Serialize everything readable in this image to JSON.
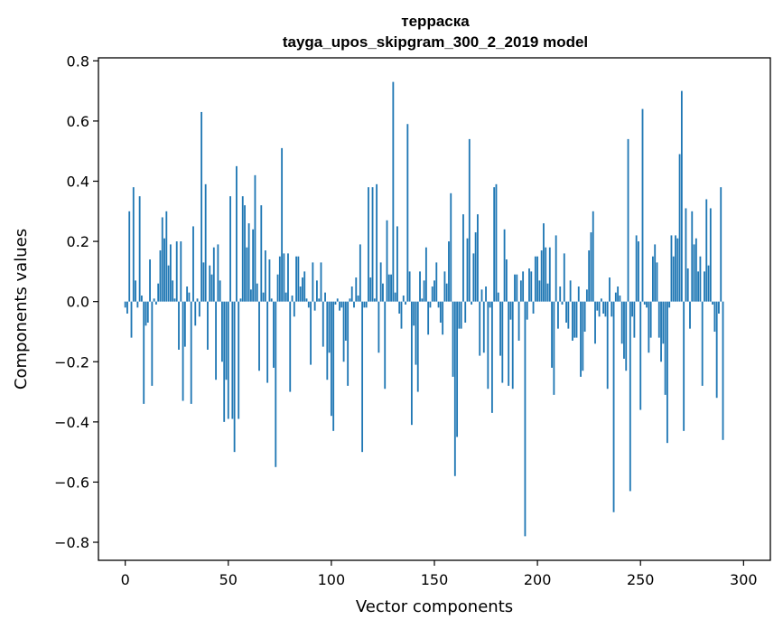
{
  "chart_data": {
    "type": "bar",
    "title_line1": "терраска",
    "title_line2": "tayga_upos_skipgram_300_2_2019 model",
    "xlabel": "Vector components",
    "ylabel": "Components values",
    "xlim": [
      -13,
      313
    ],
    "ylim": [
      -0.86,
      0.81
    ],
    "xticks": [
      0,
      50,
      100,
      150,
      200,
      250,
      300
    ],
    "xtick_labels": [
      "0",
      "50",
      "100",
      "150",
      "200",
      "250",
      "300"
    ],
    "yticks": [
      -0.8,
      -0.6,
      -0.4,
      -0.2,
      0.0,
      0.2,
      0.4,
      0.6,
      0.8
    ],
    "ytick_labels": [
      "−0.8",
      "−0.6",
      "−0.4",
      "−0.2",
      "0.0",
      "0.2",
      "0.4",
      "0.6",
      "0.8"
    ],
    "bar_color": "#1f77b4",
    "values": [
      -0.02,
      -0.04,
      0.3,
      -0.12,
      0.38,
      0.07,
      -0.02,
      0.35,
      0.02,
      -0.34,
      -0.08,
      -0.07,
      0.14,
      -0.28,
      0.01,
      -0.01,
      0.06,
      0.17,
      0.28,
      0.21,
      0.3,
      0.12,
      0.19,
      0.07,
      0.01,
      0.2,
      -0.16,
      0.2,
      -0.33,
      -0.15,
      0.05,
      0.03,
      -0.34,
      0.25,
      -0.08,
      0.01,
      -0.05,
      0.63,
      0.13,
      0.39,
      -0.16,
      0.12,
      0.09,
      0.18,
      -0.26,
      0.19,
      0.07,
      -0.2,
      -0.4,
      -0.26,
      -0.39,
      0.35,
      -0.39,
      -0.5,
      0.45,
      -0.39,
      0.01,
      0.35,
      0.32,
      0.18,
      0.26,
      0.04,
      0.24,
      0.42,
      0.06,
      -0.23,
      0.32,
      0.03,
      0.17,
      -0.27,
      0.14,
      0.01,
      -0.22,
      -0.55,
      0.09,
      0.15,
      0.51,
      0.16,
      0.03,
      0.16,
      -0.3,
      0.02,
      -0.05,
      0.15,
      0.15,
      0.05,
      0.08,
      0.1,
      0.01,
      -0.02,
      -0.21,
      0.13,
      -0.03,
      0.07,
      0.01,
      0.13,
      -0.15,
      0.03,
      -0.26,
      -0.17,
      -0.38,
      -0.43,
      -0.01,
      0.01,
      -0.03,
      -0.02,
      -0.2,
      -0.13,
      -0.28,
      0.01,
      0.05,
      -0.02,
      0.08,
      0.02,
      0.19,
      -0.5,
      -0.02,
      -0.02,
      0.38,
      0.08,
      0.38,
      0.01,
      0.39,
      -0.17,
      0.13,
      0.06,
      -0.29,
      0.27,
      0.09,
      0.09,
      0.73,
      0.03,
      0.25,
      -0.04,
      -0.09,
      0.02,
      -0.01,
      0.59,
      0.1,
      -0.41,
      -0.08,
      -0.21,
      -0.3,
      0.1,
      0.01,
      0.07,
      0.18,
      -0.11,
      -0.02,
      0.05,
      0.07,
      0.13,
      -0.02,
      -0.07,
      -0.11,
      0.1,
      0.06,
      0.2,
      0.36,
      -0.25,
      -0.58,
      -0.45,
      -0.09,
      -0.09,
      0.29,
      -0.07,
      0.21,
      0.54,
      -0.01,
      0.16,
      0.23,
      0.29,
      -0.18,
      0.04,
      -0.17,
      0.05,
      -0.29,
      -0.02,
      -0.37,
      0.38,
      0.39,
      0.03,
      -0.18,
      -0.27,
      0.24,
      0.14,
      -0.28,
      -0.06,
      -0.29,
      0.09,
      0.09,
      -0.13,
      0.07,
      0.1,
      -0.78,
      -0.06,
      0.11,
      0.1,
      -0.04,
      0.15,
      0.15,
      0.07,
      0.17,
      0.26,
      0.18,
      0.06,
      0.18,
      -0.22,
      -0.31,
      0.22,
      -0.09,
      0.05,
      -0.01,
      0.16,
      -0.07,
      -0.09,
      0.07,
      -0.13,
      -0.12,
      -0.12,
      0.05,
      -0.25,
      -0.23,
      -0.1,
      0.04,
      0.17,
      0.23,
      0.3,
      -0.14,
      -0.03,
      -0.05,
      0.01,
      -0.04,
      -0.05,
      -0.29,
      0.08,
      -0.05,
      -0.7,
      0.03,
      0.05,
      0.02,
      -0.14,
      -0.19,
      -0.23,
      0.54,
      -0.63,
      -0.05,
      -0.12,
      0.22,
      0.2,
      -0.36,
      0.64,
      -0.01,
      -0.02,
      -0.17,
      -0.12,
      0.15,
      0.19,
      0.13,
      -0.12,
      -0.2,
      -0.14,
      -0.31,
      -0.47,
      -0.02,
      0.22,
      0.15,
      0.22,
      0.21,
      0.49,
      0.7,
      -0.43,
      0.31,
      0.11,
      -0.09,
      0.3,
      0.19,
      0.21,
      0.1,
      0.15,
      -0.28,
      0.1,
      0.34,
      0.12,
      0.31,
      -0.01,
      -0.1,
      -0.32,
      -0.04,
      0.38,
      -0.46
    ]
  }
}
